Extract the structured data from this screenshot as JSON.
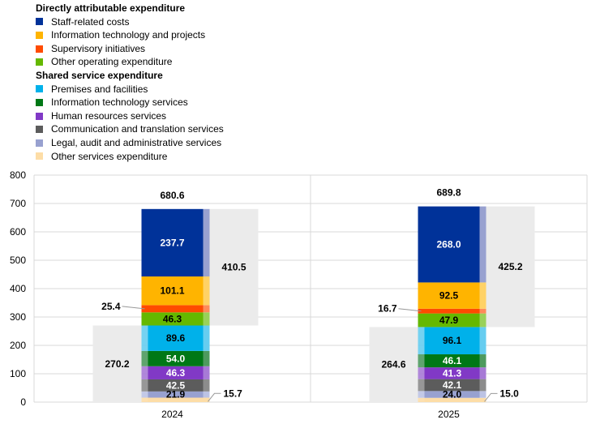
{
  "legend": {
    "groups": [
      {
        "title": "Directly attributable expenditure",
        "items": [
          {
            "label": "Staff-related costs",
            "color": "#003299"
          },
          {
            "label": "Information technology and projects",
            "color": "#FFB400"
          },
          {
            "label": "Supervisory initiatives",
            "color": "#FF4B00"
          },
          {
            "label": "Other operating expenditure",
            "color": "#65B800"
          }
        ]
      },
      {
        "title": "Shared service expenditure",
        "items": [
          {
            "label": "Premises and facilities",
            "color": "#00B1EA"
          },
          {
            "label": "Information technology services",
            "color": "#007816"
          },
          {
            "label": "Human resources services",
            "color": "#8139C6"
          },
          {
            "label": "Communication and translation services",
            "color": "#5C5C5C"
          },
          {
            "label": "Legal, audit and administrative services",
            "color": "#98A1D0"
          },
          {
            "label": "Other services expenditure",
            "color": "#FDDDA7"
          }
        ]
      }
    ]
  },
  "chart_data": {
    "type": "bar",
    "stacked": true,
    "categories": [
      "2024",
      "2025"
    ],
    "ylim": [
      0,
      800
    ],
    "yticks": [
      0,
      100,
      200,
      300,
      400,
      500,
      600,
      700,
      800
    ],
    "grid": true,
    "series": [
      {
        "name": "Other services expenditure",
        "color": "#FDDDA7",
        "values": [
          15.7,
          15.0
        ],
        "labels": [
          "15.7",
          "15.0"
        ]
      },
      {
        "name": "Legal, audit and administrative services",
        "color": "#98A1D0",
        "values": [
          21.9,
          24.0
        ],
        "labels": [
          "21.9",
          "24.0"
        ]
      },
      {
        "name": "Communication and translation services",
        "color": "#5C5C5C",
        "values": [
          42.5,
          42.1
        ],
        "labels": [
          "42.5",
          "42.1"
        ]
      },
      {
        "name": "Human resources services",
        "color": "#8139C6",
        "values": [
          46.3,
          41.3
        ],
        "labels": [
          "46.3",
          "41.3"
        ]
      },
      {
        "name": "Information technology services",
        "color": "#007816",
        "values": [
          54.0,
          46.1
        ],
        "labels": [
          "54.0",
          "46.1"
        ]
      },
      {
        "name": "Premises and facilities",
        "color": "#00B1EA",
        "values": [
          89.6,
          96.1
        ],
        "labels": [
          "89.6",
          "96.1"
        ]
      },
      {
        "name": "Other operating expenditure",
        "color": "#65B800",
        "values": [
          46.3,
          47.9
        ],
        "labels": [
          "46.3",
          "47.9"
        ]
      },
      {
        "name": "Supervisory initiatives",
        "color": "#FF4B00",
        "values": [
          25.4,
          16.7
        ],
        "labels": [
          "25.4",
          "16.7"
        ]
      },
      {
        "name": "Information technology and projects",
        "color": "#FFB400",
        "values": [
          101.1,
          92.5
        ],
        "labels": [
          "101.1",
          "92.5"
        ]
      },
      {
        "name": "Staff-related costs",
        "color": "#003299",
        "values": [
          237.7,
          268.0
        ],
        "labels": [
          "237.7",
          "268.0"
        ]
      }
    ],
    "totals": [
      "680.6",
      "689.8"
    ],
    "shared_totals": [
      "270.2",
      "264.6"
    ],
    "direct_totals": [
      "410.5",
      "425.2"
    ]
  }
}
